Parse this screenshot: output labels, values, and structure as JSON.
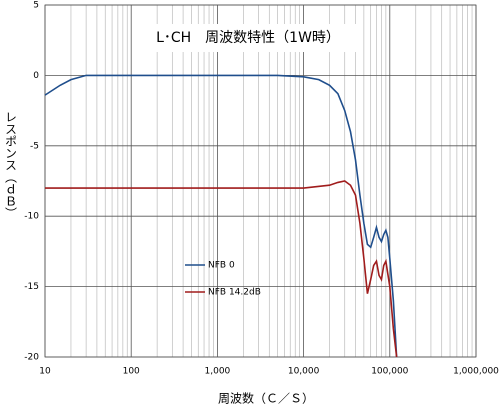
{
  "chart_data": {
    "type": "line",
    "title": "L･CH　周波数特性（1W時）",
    "x_label": "周波数（Ｃ／Ｓ）",
    "y_label": "レスポンス（ｄＢ）",
    "x_log": true,
    "grid": true,
    "minor_grid": true,
    "xlim": [
      10,
      1000000
    ],
    "xticks": [
      10,
      100,
      {
        "value": 1000,
        "label": "1,000"
      },
      {
        "value": 10000,
        "label": "10,000"
      },
      {
        "value": 100000,
        "label": "100,000"
      },
      {
        "value": 1000000,
        "label": "1,000,000"
      }
    ],
    "ylim": [
      -20,
      5
    ],
    "yticks": [
      5,
      0,
      -5,
      -10,
      -15,
      -20
    ],
    "series": [
      {
        "name": "NFB 0",
        "color": "#1f4e8c",
        "x": [
          10,
          15,
          20,
          30,
          50,
          100,
          1000,
          5000,
          10000,
          15000,
          20000,
          25000,
          30000,
          35000,
          40000,
          45000,
          50000,
          55000,
          60000,
          65000,
          70000,
          75000,
          80000,
          85000,
          90000,
          95000,
          100000,
          110000,
          120000
        ],
        "values": [
          -1.4,
          -0.7,
          -0.3,
          0,
          0,
          0,
          0,
          0,
          -0.1,
          -0.3,
          -0.7,
          -1.3,
          -2.5,
          -4,
          -6,
          -8.5,
          -10.5,
          -12,
          -12.2,
          -11.5,
          -10.8,
          -11.5,
          -11.8,
          -11.3,
          -11,
          -11.5,
          -13,
          -16,
          -20
        ]
      },
      {
        "name": "NFB 14.2dB",
        "color": "#a01c1c",
        "x": [
          10,
          100,
          1000,
          10000,
          20000,
          25000,
          30000,
          35000,
          40000,
          45000,
          50000,
          55000,
          60000,
          65000,
          70000,
          75000,
          80000,
          85000,
          90000,
          100000,
          110000,
          120000
        ],
        "values": [
          -8,
          -8,
          -8,
          -8,
          -7.8,
          -7.6,
          -7.5,
          -7.8,
          -8.5,
          -10.5,
          -13,
          -15.5,
          -14.5,
          -13.5,
          -13.2,
          -14.2,
          -14.5,
          -13.5,
          -13.2,
          -15,
          -18,
          -20
        ]
      }
    ]
  }
}
